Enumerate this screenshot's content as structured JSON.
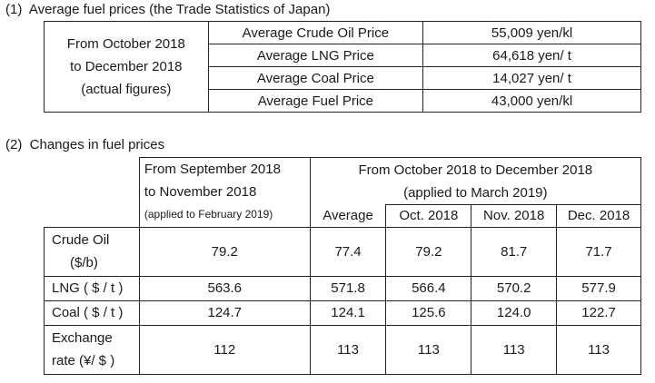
{
  "section1": {
    "heading": "(1)  Average fuel prices (the Trade Statistics of Japan)",
    "period_line1": "From October 2018",
    "period_line2": "to December 2018",
    "period_line3": "(actual figures)",
    "rows": [
      {
        "label": "Average Crude Oil Price",
        "value": "55,009 yen/kl"
      },
      {
        "label": "Average LNG Price",
        "value": "64,618 yen/ t"
      },
      {
        "label": "Average Coal Price",
        "value": "14,027 yen/ t"
      },
      {
        "label": "Average Fuel Price",
        "value": "43,000 yen/kl"
      }
    ]
  },
  "section2": {
    "heading": "(2)  Changes in fuel prices",
    "prev_line1": "From September 2018",
    "prev_line2": "to November 2018",
    "prev_line3": "(applied to February 2019)",
    "curr_line1": "From October 2018 to December 2018",
    "curr_line2": "(applied to March 2019)",
    "col_average": "Average",
    "col_oct": "Oct. 2018",
    "col_nov": "Nov. 2018",
    "col_dec": "Dec. 2018",
    "rows": [
      {
        "label1": "Crude Oil",
        "label2": "($/b)",
        "prev": "79.2",
        "avg": "77.4",
        "oct": "79.2",
        "nov": "81.7",
        "dec": "71.7"
      },
      {
        "label1": "LNG ( $ / t )",
        "label2": "",
        "prev": "563.6",
        "avg": "571.8",
        "oct": "566.4",
        "nov": "570.2",
        "dec": "577.9"
      },
      {
        "label1": "Coal ( $ / t )",
        "label2": "",
        "prev": "124.7",
        "avg": "124.1",
        "oct": "125.6",
        "nov": "124.0",
        "dec": "122.7"
      },
      {
        "label1": "Exchange",
        "label2": "rate (¥/ $ )",
        "prev": "112",
        "avg": "113",
        "oct": "113",
        "nov": "113",
        "dec": "113"
      }
    ]
  }
}
